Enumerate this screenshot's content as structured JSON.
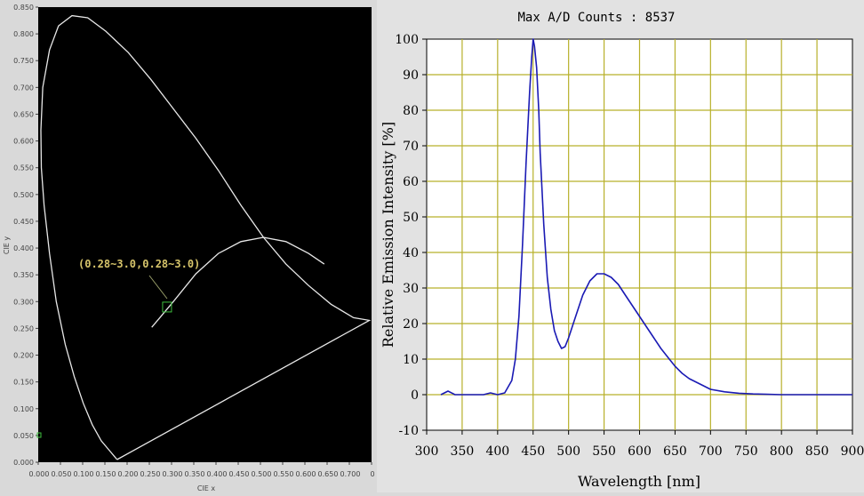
{
  "chart_data": [
    {
      "type": "line",
      "xlabel": "CIE x",
      "ylabel": "CIE y",
      "xlim": [
        0,
        0.74
      ],
      "ylim": [
        0,
        0.85
      ],
      "x_ticks": [
        "0.000",
        "0.050",
        "0.100",
        "0.150",
        "0.200",
        "0.250",
        "0.300",
        "0.350",
        "0.400",
        "0.450",
        "0.500",
        "0.550",
        "0.600",
        "0.650",
        "0.700",
        "0"
      ],
      "y_ticks": [
        "0.000",
        "0.050",
        "0.100",
        "0.150",
        "0.200",
        "0.250",
        "0.300",
        "0.350",
        "0.400",
        "0.450",
        "0.500",
        "0.550",
        "0.600",
        "0.650",
        "0.700",
        "0.750",
        "0.800",
        "0.850"
      ],
      "series": [
        {
          "values": [
            [
              0.175,
              0.005
            ],
            [
              0.16,
              0.02
            ],
            [
              0.14,
              0.04
            ],
            [
              0.12,
              0.07
            ],
            [
              0.1,
              0.11
            ],
            [
              0.08,
              0.16
            ],
            [
              0.06,
              0.22
            ],
            [
              0.04,
              0.3
            ],
            [
              0.025,
              0.39
            ],
            [
              0.013,
              0.48
            ],
            [
              0.007,
              0.55
            ],
            [
              0.006,
              0.62
            ],
            [
              0.01,
              0.7
            ],
            [
              0.025,
              0.77
            ],
            [
              0.045,
              0.815
            ],
            [
              0.075,
              0.834
            ],
            [
              0.11,
              0.83
            ],
            [
              0.15,
              0.805
            ],
            [
              0.2,
              0.765
            ],
            [
              0.25,
              0.715
            ],
            [
              0.3,
              0.66
            ],
            [
              0.35,
              0.605
            ],
            [
              0.4,
              0.545
            ],
            [
              0.45,
              0.48
            ],
            [
              0.5,
              0.42
            ],
            [
              0.55,
              0.37
            ],
            [
              0.6,
              0.33
            ],
            [
              0.65,
              0.295
            ],
            [
              0.7,
              0.27
            ],
            [
              0.735,
              0.265
            ],
            [
              0.175,
              0.005
            ]
          ]
        },
        {
          "values": [
            [
              0.252,
              0.252
            ],
            [
              0.27,
              0.27
            ],
            [
              0.3,
              0.3
            ],
            [
              0.35,
              0.352
            ],
            [
              0.4,
              0.39
            ],
            [
              0.45,
              0.412
            ],
            [
              0.5,
              0.42
            ],
            [
              0.55,
              0.412
            ],
            [
              0.6,
              0.39
            ],
            [
              0.635,
              0.37
            ]
          ]
        }
      ],
      "marker": {
        "x": 0.286,
        "y": 0.289
      },
      "annotation": "(0.28~3.0,0.28~3.0)"
    },
    {
      "type": "line",
      "title": "Max A/D Counts : 8537",
      "xlabel": "Wavelength [nm]",
      "ylabel": "Relative Emission Intensity [%]",
      "xlim": [
        300,
        900
      ],
      "ylim": [
        -10,
        100
      ],
      "x_ticks": [
        300,
        350,
        400,
        450,
        500,
        550,
        600,
        650,
        700,
        750,
        800,
        850,
        900
      ],
      "y_ticks": [
        100,
        90,
        80,
        70,
        60,
        50,
        40,
        30,
        20,
        10,
        0,
        -10
      ],
      "grid": true,
      "series": [
        {
          "color": "#1a1ab4",
          "x": [
            320,
            330,
            340,
            350,
            360,
            370,
            380,
            390,
            400,
            410,
            420,
            425,
            430,
            435,
            440,
            445,
            448,
            450,
            452,
            455,
            458,
            460,
            465,
            470,
            475,
            480,
            485,
            490,
            495,
            500,
            510,
            520,
            530,
            540,
            550,
            560,
            570,
            580,
            590,
            600,
            610,
            620,
            630,
            640,
            650,
            660,
            670,
            680,
            690,
            700,
            720,
            740,
            760,
            780,
            800,
            820,
            840,
            860,
            880,
            900
          ],
          "values": [
            0,
            1,
            0,
            0,
            0,
            0,
            0,
            0.5,
            0,
            0.5,
            4,
            10,
            22,
            42,
            65,
            85,
            95,
            100,
            98,
            92,
            80,
            68,
            48,
            33,
            24,
            18,
            15,
            13,
            13.5,
            16,
            22,
            28,
            32,
            34,
            34,
            33,
            31,
            28,
            25,
            22,
            19,
            16,
            13,
            10.5,
            8,
            6,
            4.5,
            3.5,
            2.5,
            1.5,
            0.8,
            0.4,
            0.2,
            0.1,
            0,
            0,
            0,
            0,
            0,
            0
          ]
        }
      ]
    }
  ]
}
